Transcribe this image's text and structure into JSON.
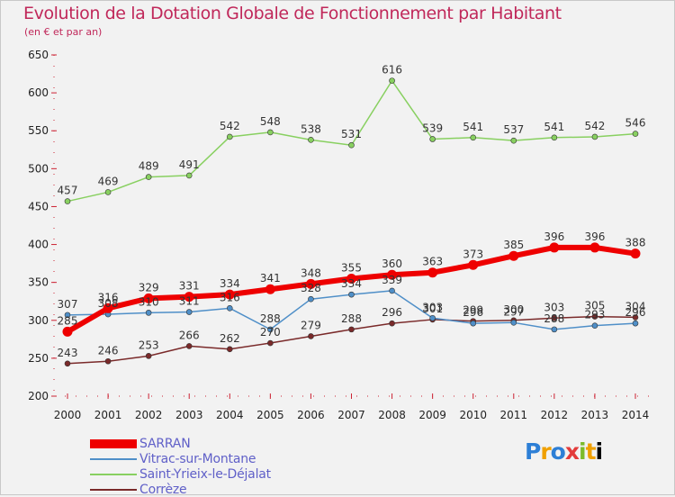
{
  "chart_data": {
    "type": "line",
    "title": "Evolution de la Dotation Globale de Fonctionnement par Habitant",
    "subtitle": "(en € et par an)",
    "x": [
      "2000",
      "2001",
      "2002",
      "2003",
      "2004",
      "2005",
      "2006",
      "2007",
      "2008",
      "2009",
      "2010",
      "2011",
      "2012",
      "2013",
      "2014"
    ],
    "ylim": [
      200,
      650
    ],
    "yticks": [
      200,
      250,
      300,
      350,
      400,
      450,
      500,
      550,
      600,
      650
    ],
    "grid": false,
    "legend_position": "bottom-left",
    "series": [
      {
        "name": "SARRAN",
        "color": "#ee0000",
        "values": [
          285,
          316,
          329,
          331,
          334,
          341,
          348,
          355,
          360,
          363,
          373,
          385,
          396,
          396,
          388
        ]
      },
      {
        "name": "Vitrac-sur-Montane",
        "color": "#4f8fc8",
        "values": [
          307,
          308,
          310,
          311,
          316,
          288,
          328,
          334,
          339,
          303,
          296,
          297,
          288,
          293,
          296
        ]
      },
      {
        "name": "Saint-Yrieix-le-Déjalat",
        "color": "#88d060",
        "values": [
          457,
          469,
          489,
          491,
          542,
          548,
          538,
          531,
          616,
          539,
          541,
          537,
          541,
          542,
          546
        ]
      },
      {
        "name": "Corrèze",
        "color": "#7a2a2a",
        "values": [
          243,
          246,
          253,
          266,
          262,
          270,
          279,
          288,
          296,
          301,
          299,
          300,
          303,
          305,
          304
        ]
      }
    ]
  },
  "logo": {
    "letters": [
      "P",
      "r",
      "o",
      "x",
      "i",
      "t",
      "i"
    ]
  }
}
